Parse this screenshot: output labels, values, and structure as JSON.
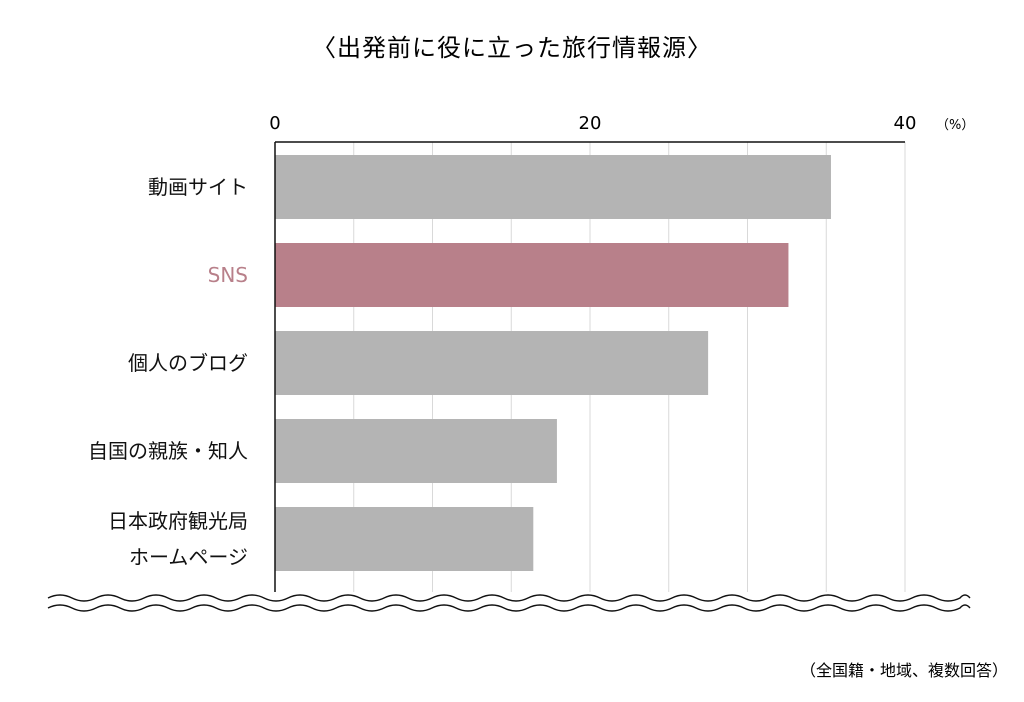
{
  "chart_data": {
    "type": "bar",
    "orientation": "horizontal",
    "title": "〈出発前に役に立った旅行情報源〉",
    "categories": [
      [
        "動画サイト"
      ],
      [
        "SNS"
      ],
      [
        "個人のブログ"
      ],
      [
        "自国の親族・知人"
      ],
      [
        "日本政府観光局",
        "ホームページ"
      ]
    ],
    "values": [
      35.3,
      32.6,
      27.5,
      17.9,
      16.4
    ],
    "highlight_index": 1,
    "xlim": [
      0,
      40
    ],
    "x_ticks": [
      0,
      20,
      40
    ],
    "x_tick_labels": [
      "0",
      "20",
      "40"
    ],
    "unit_label": "（%）",
    "note": "（全国籍・地域、複数回答）",
    "grid": true,
    "colors": {
      "bar": "#b4b4b4",
      "highlight_bar": "#b8808a",
      "highlight_text": "#b8808a",
      "axis": "#111111",
      "grid": "#d9d9d9"
    }
  }
}
